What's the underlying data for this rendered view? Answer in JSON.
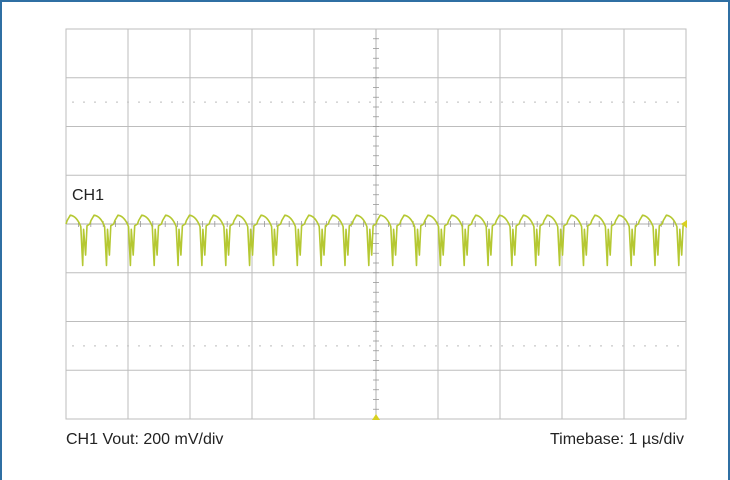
{
  "chart_data": {
    "type": "line",
    "channel_label": "CH1",
    "caption_left": "CH1 Vout: 200 mV/div",
    "caption_right": "Timebase: 1 µs/div",
    "divisions": {
      "x": 10,
      "y": 8
    },
    "x_range_div": [
      0,
      10
    ],
    "y_range_div": [
      -4,
      4
    ],
    "grid": true,
    "series": [
      {
        "waveform": "periodic ripple with negative switching spikes",
        "baseline_div": 0,
        "cycles": 26,
        "ripple_peak_div": 0.18,
        "spike_min_div": -0.85
      }
    ],
    "colors": {
      "trace": "#b5c832",
      "grid": "#bdbdbd",
      "dotted": "#c8c8c8",
      "frame": "#2f6fa3",
      "marker": "#d8d020"
    }
  }
}
